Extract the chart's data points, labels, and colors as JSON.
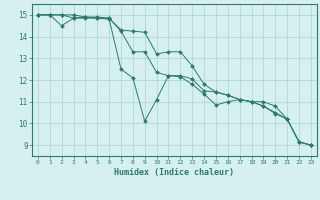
{
  "xlabel": "Humidex (Indice chaleur)",
  "bg_color": "#d6f0ef",
  "grid_color": "#b0d8d5",
  "line_color": "#2a7a6e",
  "xlim": [
    -0.5,
    23.5
  ],
  "ylim": [
    8.5,
    15.5
  ],
  "xticks": [
    0,
    1,
    2,
    3,
    4,
    5,
    6,
    7,
    8,
    9,
    10,
    11,
    12,
    13,
    14,
    15,
    16,
    17,
    18,
    19,
    20,
    21,
    22,
    23
  ],
  "yticks": [
    9,
    10,
    11,
    12,
    13,
    14,
    15
  ],
  "series": [
    [
      15.0,
      15.0,
      14.5,
      14.85,
      14.85,
      14.85,
      14.8,
      12.5,
      12.1,
      10.1,
      11.1,
      12.2,
      12.15,
      11.8,
      11.35,
      10.85,
      11.0,
      11.1,
      11.0,
      10.8,
      10.45,
      10.2,
      9.15,
      9.0
    ],
    [
      15.0,
      15.0,
      15.0,
      14.85,
      14.9,
      14.9,
      14.85,
      14.25,
      13.3,
      13.3,
      12.35,
      12.2,
      12.2,
      12.05,
      11.5,
      11.45,
      11.3,
      11.1,
      11.0,
      10.8,
      10.5,
      10.2,
      9.15,
      9.0
    ],
    [
      15.0,
      15.0,
      15.0,
      15.0,
      14.9,
      14.85,
      14.85,
      14.3,
      14.25,
      14.2,
      13.2,
      13.3,
      13.3,
      12.65,
      11.8,
      11.45,
      11.3,
      11.1,
      11.0,
      11.0,
      10.8,
      10.2,
      9.15,
      9.0
    ]
  ]
}
